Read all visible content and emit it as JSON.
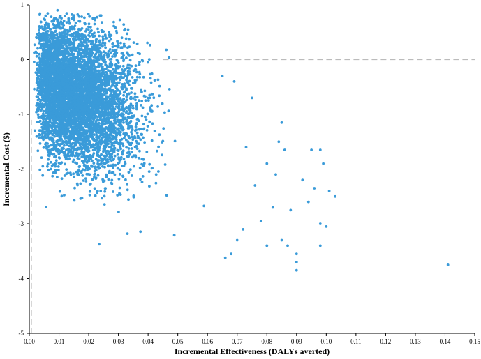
{
  "chart_data": {
    "type": "scatter",
    "title": "",
    "xlabel": "Incremental Effectiveness (DALYs averted)",
    "ylabel": "Incremental Cost ($)",
    "xlim": [
      0,
      0.15
    ],
    "ylim": [
      -5,
      1
    ],
    "xticks": [
      "0.00",
      "0.01",
      "0.02",
      "0.03",
      "0.04",
      "0.05",
      "0.06",
      "0.07",
      "0.08",
      "0.09",
      "0.10",
      "0.11",
      "0.12",
      "0.13",
      "0.14",
      "0.15"
    ],
    "yticks": [
      "1",
      "0",
      "-1",
      "-2",
      "-3",
      "-4",
      "-5"
    ],
    "grid": false,
    "point_color": "#3a9bd9",
    "reference_lines": {
      "horizontal_y": 0,
      "vertical_x": 0,
      "color": "#bbbbbb",
      "style": "dashed"
    },
    "cluster": {
      "approx_points": 6000,
      "center_x": 0.02,
      "center_y": -0.9,
      "spread_x": 0.012,
      "spread_y": 0.6,
      "trend_slope": -22
    },
    "outliers": [
      {
        "x": 0.141,
        "y": -3.75
      },
      {
        "x": 0.103,
        "y": -2.5
      },
      {
        "x": 0.101,
        "y": -2.4
      },
      {
        "x": 0.1,
        "y": -3.05
      },
      {
        "x": 0.098,
        "y": -3.0
      },
      {
        "x": 0.098,
        "y": -1.65
      },
      {
        "x": 0.099,
        "y": -1.9
      },
      {
        "x": 0.095,
        "y": -1.65
      },
      {
        "x": 0.098,
        "y": -3.4
      },
      {
        "x": 0.09,
        "y": -3.85
      },
      {
        "x": 0.09,
        "y": -3.7
      },
      {
        "x": 0.09,
        "y": -3.55
      },
      {
        "x": 0.088,
        "y": -2.75
      },
      {
        "x": 0.087,
        "y": -3.4
      },
      {
        "x": 0.085,
        "y": -3.3
      },
      {
        "x": 0.085,
        "y": -1.15
      },
      {
        "x": 0.084,
        "y": -1.5
      },
      {
        "x": 0.086,
        "y": -1.65
      },
      {
        "x": 0.082,
        "y": -2.7
      },
      {
        "x": 0.08,
        "y": -3.4
      },
      {
        "x": 0.075,
        "y": -0.7
      },
      {
        "x": 0.07,
        "y": -3.3
      },
      {
        "x": 0.068,
        "y": -3.55
      },
      {
        "x": 0.066,
        "y": -3.62
      },
      {
        "x": 0.065,
        "y": -0.3
      },
      {
        "x": 0.069,
        "y": -0.4
      },
      {
        "x": 0.072,
        "y": -3.1
      },
      {
        "x": 0.078,
        "y": -2.95
      },
      {
        "x": 0.092,
        "y": -2.2
      },
      {
        "x": 0.094,
        "y": -2.6
      },
      {
        "x": 0.096,
        "y": -2.35
      },
      {
        "x": 0.083,
        "y": -2.1
      },
      {
        "x": 0.08,
        "y": -1.9
      },
      {
        "x": 0.076,
        "y": -2.3
      },
      {
        "x": 0.073,
        "y": -1.6
      },
      {
        "x": 0.0095,
        "y": 0.9
      },
      {
        "x": 0.0035,
        "y": 0.82
      },
      {
        "x": 0.0055,
        "y": 0.8
      }
    ]
  }
}
